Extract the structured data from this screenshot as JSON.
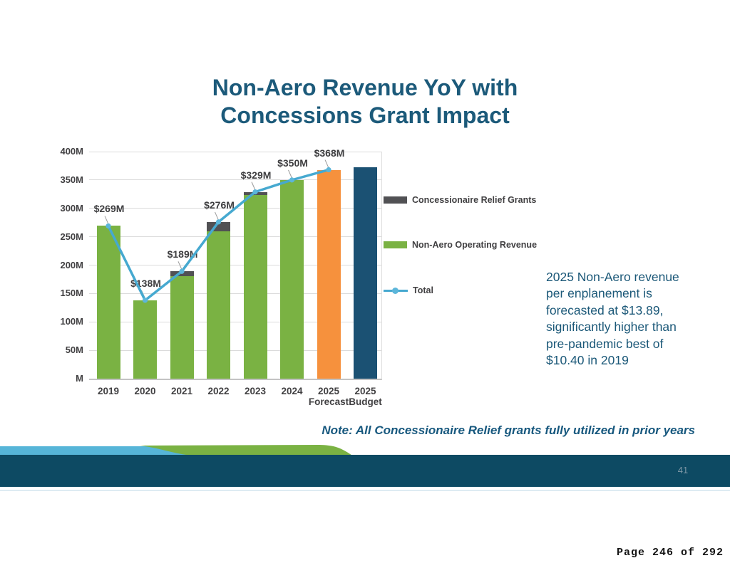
{
  "title": {
    "line1": "Non-Aero Revenue YoY with",
    "line2": "Concessions Grant Impact"
  },
  "colors": {
    "green": "#7AB243",
    "gray": "#515154",
    "orange": "#F6913D",
    "navy": "#1B5173",
    "line": "#46A9D0",
    "marker": "#5CB6DA",
    "leader": "#9B9B9B",
    "grid": "#DBDBDB",
    "axis_text": "#414042",
    "teal_text": "#1B5878",
    "footer_blue": "#56B5D8",
    "footer_green": "#7AB243",
    "footer_navy": "#0D4A63"
  },
  "chart_data": {
    "type": "bar",
    "stacked": true,
    "ylim": [
      0,
      400
    ],
    "y_tick_step": 50,
    "grid": true,
    "legend_position": "right",
    "y_ticks": [
      {
        "label": "400M",
        "value": 400
      },
      {
        "label": "350M",
        "value": 350
      },
      {
        "label": "300M",
        "value": 300
      },
      {
        "label": "250M",
        "value": 250
      },
      {
        "label": "200M",
        "value": 200
      },
      {
        "label": "150M",
        "value": 150
      },
      {
        "label": "100M",
        "value": 100
      },
      {
        "label": "50M",
        "value": 50
      },
      {
        "label": "M",
        "value": 0
      }
    ],
    "series_names": [
      "Non-Aero Operating Revenue",
      "Concessionaire Relief Grants",
      "Total"
    ],
    "bars": [
      {
        "category_lines": [
          "2019"
        ],
        "segments": [
          {
            "color": "green",
            "value": 269
          }
        ],
        "total": 269,
        "label": "$269M",
        "in_line": true
      },
      {
        "category_lines": [
          "2020"
        ],
        "segments": [
          {
            "color": "green",
            "value": 138
          }
        ],
        "total": 138,
        "label": "$138M",
        "in_line": true
      },
      {
        "category_lines": [
          "2021"
        ],
        "segments": [
          {
            "color": "green",
            "value": 180
          },
          {
            "color": "gray",
            "value": 9
          }
        ],
        "total": 189,
        "label": "$189M",
        "in_line": true
      },
      {
        "category_lines": [
          "2022"
        ],
        "segments": [
          {
            "color": "green",
            "value": 259
          },
          {
            "color": "gray",
            "value": 17
          }
        ],
        "total": 276,
        "label": "$276M",
        "in_line": true
      },
      {
        "category_lines": [
          "2023"
        ],
        "segments": [
          {
            "color": "green",
            "value": 324
          },
          {
            "color": "gray",
            "value": 5
          }
        ],
        "total": 329,
        "label": "$329M",
        "in_line": true
      },
      {
        "category_lines": [
          "2024"
        ],
        "segments": [
          {
            "color": "green",
            "value": 350
          }
        ],
        "total": 350,
        "label": "$350M",
        "in_line": true
      },
      {
        "category_lines": [
          "2025",
          "Forecast"
        ],
        "segments": [
          {
            "color": "orange",
            "value": 368
          }
        ],
        "total": 368,
        "label": "$368M",
        "in_line": true
      },
      {
        "category_lines": [
          "2025",
          "Budget"
        ],
        "segments": [
          {
            "color": "navy",
            "value": 372
          }
        ],
        "total": 372,
        "label": "",
        "in_line": false
      }
    ],
    "line_series": {
      "name": "Total",
      "values": [
        269,
        138,
        189,
        276,
        329,
        350,
        368
      ]
    }
  },
  "legend": {
    "items": [
      {
        "label": "Concessionaire Relief Grants",
        "swatch": "gray-rect"
      },
      {
        "label": "Non-Aero Operating Revenue",
        "swatch": "green-rect"
      },
      {
        "label": "Total",
        "swatch": "blue-line-marker"
      }
    ]
  },
  "annotation": {
    "lines": [
      "2025 Non-Aero revenue",
      "per enplanement is",
      "forecasted at $13.89,",
      "significantly higher than",
      "pre-pandemic best of",
      "$10.40 in 2019"
    ]
  },
  "note": "Note: All Concessionaire Relief grants fully utilized in prior years",
  "footer": {
    "slide_number": "41"
  },
  "document": {
    "page_label": "Page 246 of 292"
  }
}
